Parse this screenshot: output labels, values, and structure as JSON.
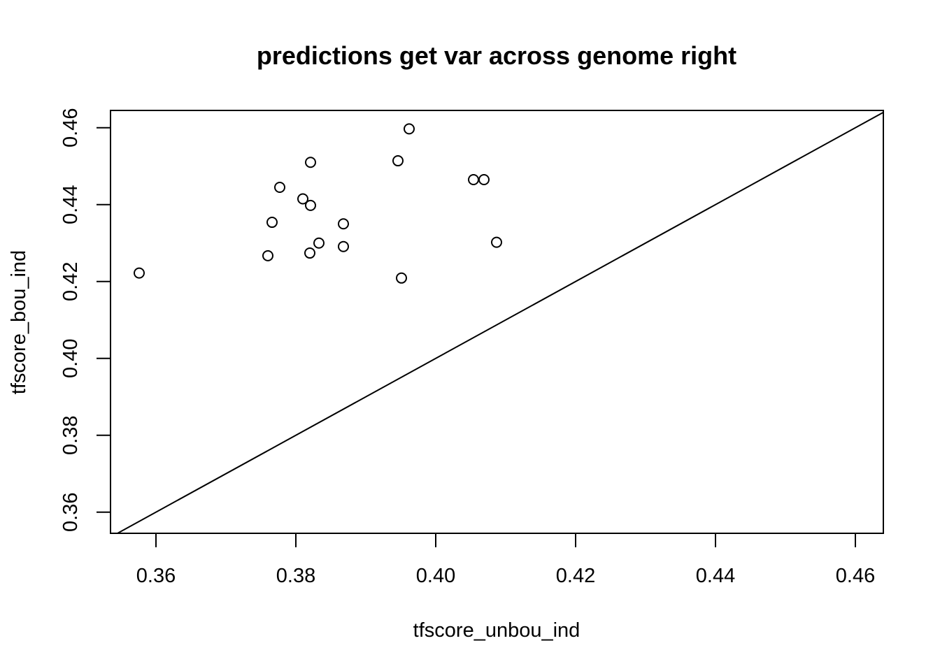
{
  "chart_data": {
    "type": "scatter",
    "title": "predictions get var across genome right",
    "xlabel": "tfscore_unbou_ind",
    "ylabel": "tfscore_bou_ind",
    "xlim": [
      0.3535,
      0.464
    ],
    "ylim": [
      0.3545,
      0.4645
    ],
    "x_ticks": [
      0.36,
      0.38,
      0.4,
      0.42,
      0.44,
      0.46
    ],
    "y_ticks": [
      0.36,
      0.38,
      0.4,
      0.42,
      0.44,
      0.46
    ],
    "x_tick_labels": [
      "0.36",
      "0.38",
      "0.40",
      "0.42",
      "0.44",
      "0.46"
    ],
    "y_tick_labels": [
      "0.36",
      "0.38",
      "0.40",
      "0.42",
      "0.44",
      "0.46"
    ],
    "grid": false,
    "reference_line": {
      "type": "identity",
      "slope": 1,
      "intercept": 0
    },
    "points": [
      {
        "x": 0.3576,
        "y": 0.4222
      },
      {
        "x": 0.376,
        "y": 0.4267
      },
      {
        "x": 0.3766,
        "y": 0.4354
      },
      {
        "x": 0.3777,
        "y": 0.4445
      },
      {
        "x": 0.381,
        "y": 0.4415
      },
      {
        "x": 0.3821,
        "y": 0.451
      },
      {
        "x": 0.3821,
        "y": 0.4398
      },
      {
        "x": 0.382,
        "y": 0.4274
      },
      {
        "x": 0.3833,
        "y": 0.43
      },
      {
        "x": 0.3868,
        "y": 0.435
      },
      {
        "x": 0.3868,
        "y": 0.4291
      },
      {
        "x": 0.3946,
        "y": 0.4514
      },
      {
        "x": 0.3962,
        "y": 0.4597
      },
      {
        "x": 0.3951,
        "y": 0.4209
      },
      {
        "x": 0.4054,
        "y": 0.4465
      },
      {
        "x": 0.4069,
        "y": 0.4465
      },
      {
        "x": 0.4087,
        "y": 0.4302
      }
    ]
  }
}
